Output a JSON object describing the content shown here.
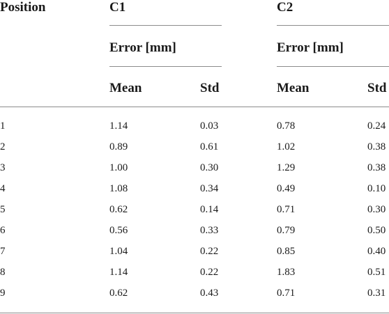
{
  "table": {
    "headers": {
      "position": "Position",
      "group1": "C1",
      "group2": "C2",
      "sub1": "Error [mm]",
      "sub2": "Error [mm]",
      "mean1": "Mean",
      "std1": "Std",
      "mean2": "Mean",
      "std2": "Std"
    },
    "rows": [
      [
        "1",
        "1.14",
        "0.03",
        "0.78",
        "0.24"
      ],
      [
        "2",
        "0.89",
        "0.61",
        "1.02",
        "0.38"
      ],
      [
        "3",
        "1.00",
        "0.30",
        "1.29",
        "0.38"
      ],
      [
        "4",
        "1.08",
        "0.34",
        "0.49",
        "0.10"
      ],
      [
        "5",
        "0.62",
        "0.14",
        "0.71",
        "0.30"
      ],
      [
        "6",
        "0.56",
        "0.33",
        "0.79",
        "0.50"
      ],
      [
        "7",
        "1.04",
        "0.22",
        "0.85",
        "0.40"
      ],
      [
        "8",
        "1.14",
        "0.22",
        "1.83",
        "0.51"
      ],
      [
        "9",
        "0.62",
        "0.43",
        "0.71",
        "0.31"
      ]
    ]
  }
}
